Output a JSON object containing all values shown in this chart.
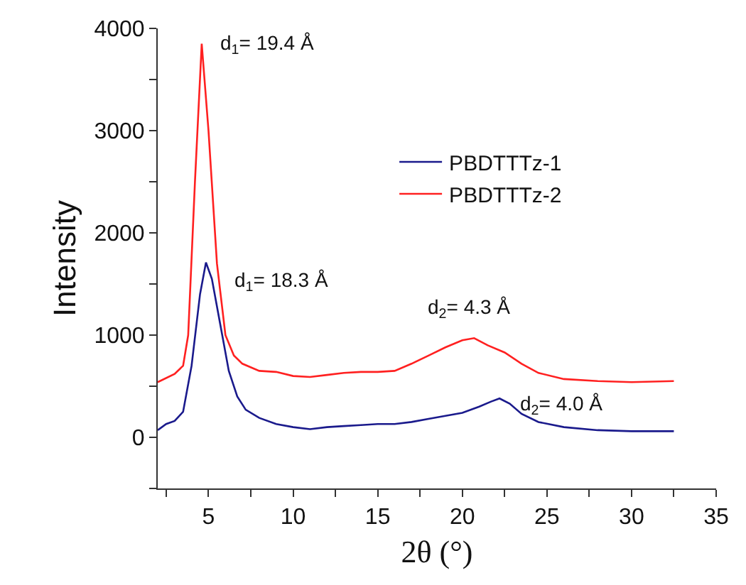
{
  "chart_data": {
    "type": "line",
    "xlabel": "2θ (°)",
    "ylabel": "Intensity",
    "xlim": [
      2,
      35
    ],
    "xticks": [
      {
        "value": 2.5,
        "label": null
      },
      5,
      {
        "value": 7.5,
        "label": null
      },
      10,
      {
        "value": 12.5,
        "label": null
      },
      15,
      {
        "value": 17.5,
        "label": null
      },
      20,
      {
        "value": 22.5,
        "label": null
      },
      25,
      {
        "value": 27.5,
        "label": null
      },
      30,
      {
        "value": 32.5,
        "label": null
      },
      35
    ],
    "ylim": [
      -500,
      4000
    ],
    "yticks": [
      {
        "value": -500,
        "label": null
      },
      0,
      {
        "value": 500,
        "label": null
      },
      1000,
      {
        "value": 1500,
        "label": null
      },
      2000,
      {
        "value": 2500,
        "label": null
      },
      3000,
      {
        "value": 3500,
        "label": null
      },
      4000
    ],
    "legend": "top right",
    "marker": "none",
    "line_style": "solid",
    "series": [
      {
        "name": "PBDTTTz-1",
        "color": "#1a1a8c",
        "x": [
          2,
          2.5,
          3,
          3.5,
          4,
          4.5,
          4.85,
          5.2,
          5.7,
          6.2,
          6.7,
          7.2,
          8,
          9,
          10,
          11,
          12,
          13,
          14,
          15,
          16,
          17,
          18,
          19,
          20,
          21,
          21.7,
          22.2,
          22.8,
          23.5,
          24.5,
          26,
          28,
          30,
          32.5
        ],
        "values": [
          70,
          130,
          160,
          250,
          700,
          1400,
          1710,
          1550,
          1100,
          650,
          400,
          270,
          190,
          130,
          100,
          80,
          100,
          110,
          120,
          130,
          130,
          150,
          180,
          210,
          240,
          300,
          350,
          380,
          330,
          230,
          150,
          100,
          70,
          60,
          60
        ]
      },
      {
        "name": "PBDTTTz-2",
        "color": "#ff2020",
        "x": [
          2,
          3,
          3.5,
          3.8,
          4.2,
          4.6,
          5,
          5.5,
          6,
          6.5,
          7,
          8,
          9,
          10,
          11,
          12,
          13,
          14,
          15,
          16,
          17,
          18,
          19,
          20,
          20.7,
          21.5,
          22.5,
          23.5,
          24.5,
          26,
          28,
          30,
          32.5
        ],
        "values": [
          540,
          620,
          700,
          1000,
          2500,
          3850,
          3000,
          1700,
          1000,
          800,
          720,
          650,
          640,
          600,
          590,
          610,
          630,
          640,
          640,
          650,
          720,
          800,
          880,
          950,
          970,
          900,
          830,
          720,
          630,
          570,
          550,
          540,
          550
        ]
      }
    ],
    "annotations": [
      "d$_{1}$= 19.4 Å",
      "d$_{1}$= 18.3 Å",
      "d$_{2}$= 4.3 Å",
      "d$_{2}$= 4.0 Å"
    ]
  }
}
